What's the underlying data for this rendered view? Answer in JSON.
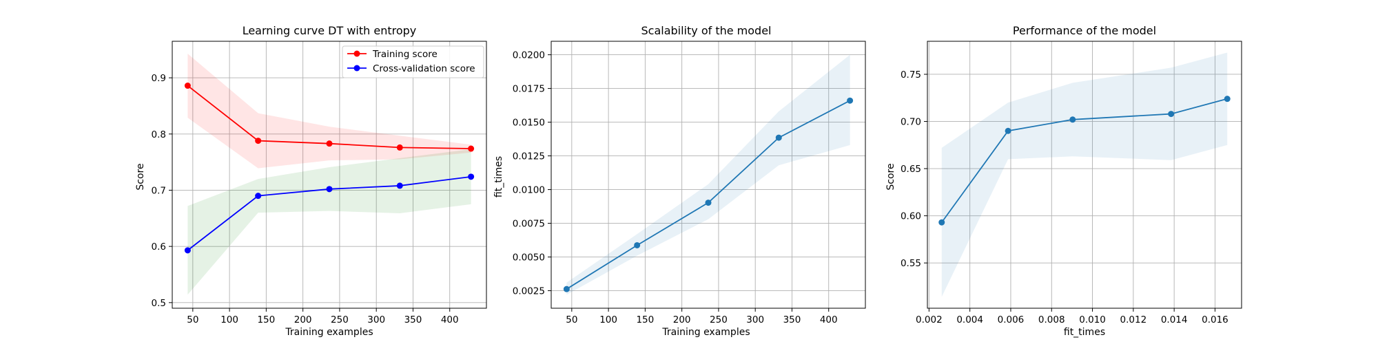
{
  "chart_data": [
    {
      "type": "line",
      "title": "Learning curve DT with entropy",
      "xlabel": "Training examples",
      "ylabel": "Score",
      "xlim": [
        22,
        450
      ],
      "ylim": [
        0.49,
        0.965
      ],
      "xticks": [
        50,
        100,
        150,
        200,
        250,
        300,
        350,
        400
      ],
      "yticks": [
        0.5,
        0.6,
        0.7,
        0.8,
        0.9
      ],
      "grid": true,
      "legend": "top-right",
      "x": [
        43,
        139,
        236,
        332,
        429
      ],
      "series": [
        {
          "name": "Training score",
          "color": "#ff0000",
          "values": [
            0.886,
            0.788,
            0.783,
            0.776,
            0.774
          ],
          "lower": [
            0.829,
            0.739,
            0.753,
            0.755,
            0.767
          ],
          "upper": [
            0.943,
            0.837,
            0.813,
            0.797,
            0.781
          ],
          "band_color": "#ff0000"
        },
        {
          "name": "Cross-validation score",
          "color": "#0000ff",
          "values": [
            0.593,
            0.69,
            0.702,
            0.708,
            0.724
          ],
          "lower": [
            0.514,
            0.66,
            0.663,
            0.659,
            0.675
          ],
          "upper": [
            0.672,
            0.72,
            0.741,
            0.757,
            0.773
          ],
          "band_color": "#008000"
        }
      ]
    },
    {
      "type": "line",
      "title": "Scalability of the model",
      "xlabel": "Training examples",
      "ylabel": "fit_times",
      "xlim": [
        22,
        450
      ],
      "ylim": [
        0.0012,
        0.021
      ],
      "xticks": [
        50,
        100,
        150,
        200,
        250,
        300,
        350,
        400
      ],
      "yticks": [
        0.0025,
        0.005,
        0.0075,
        0.01,
        0.0125,
        0.015,
        0.0175,
        0.02
      ],
      "ytick_labels": [
        "0.0025",
        "0.0050",
        "0.0075",
        "0.0100",
        "0.0125",
        "0.0150",
        "0.0175",
        "0.0200"
      ],
      "grid": true,
      "x": [
        43,
        139,
        236,
        332,
        429
      ],
      "series": [
        {
          "color": "#1f77b4",
          "values": [
            0.00262,
            0.00587,
            0.00903,
            0.01385,
            0.0166
          ],
          "lower": [
            0.0022,
            0.0051,
            0.0078,
            0.0118,
            0.0133
          ],
          "upper": [
            0.0031,
            0.0067,
            0.0104,
            0.0158,
            0.02
          ],
          "band_color": "#1f77b4"
        }
      ]
    },
    {
      "type": "line",
      "title": "Performance of the model",
      "xlabel": "fit_times",
      "ylabel": "Score",
      "xlim": [
        0.00192,
        0.0173
      ],
      "ylim": [
        0.502,
        0.785
      ],
      "xticks": [
        0.002,
        0.004,
        0.006,
        0.008,
        0.01,
        0.012,
        0.014,
        0.016
      ],
      "xtick_labels": [
        "0.002",
        "0.004",
        "0.006",
        "0.008",
        "0.010",
        "0.012",
        "0.014",
        "0.016"
      ],
      "yticks": [
        0.55,
        0.6,
        0.65,
        0.7,
        0.75
      ],
      "ytick_labels": [
        "0.55",
        "0.60",
        "0.65",
        "0.70",
        "0.75"
      ],
      "grid": true,
      "x": [
        0.00262,
        0.00587,
        0.00903,
        0.01385,
        0.0166
      ],
      "series": [
        {
          "color": "#1f77b4",
          "values": [
            0.593,
            0.69,
            0.702,
            0.708,
            0.724
          ],
          "lower": [
            0.514,
            0.66,
            0.663,
            0.659,
            0.675
          ],
          "upper": [
            0.672,
            0.72,
            0.741,
            0.757,
            0.773
          ],
          "band_color": "#1f77b4"
        }
      ]
    }
  ]
}
